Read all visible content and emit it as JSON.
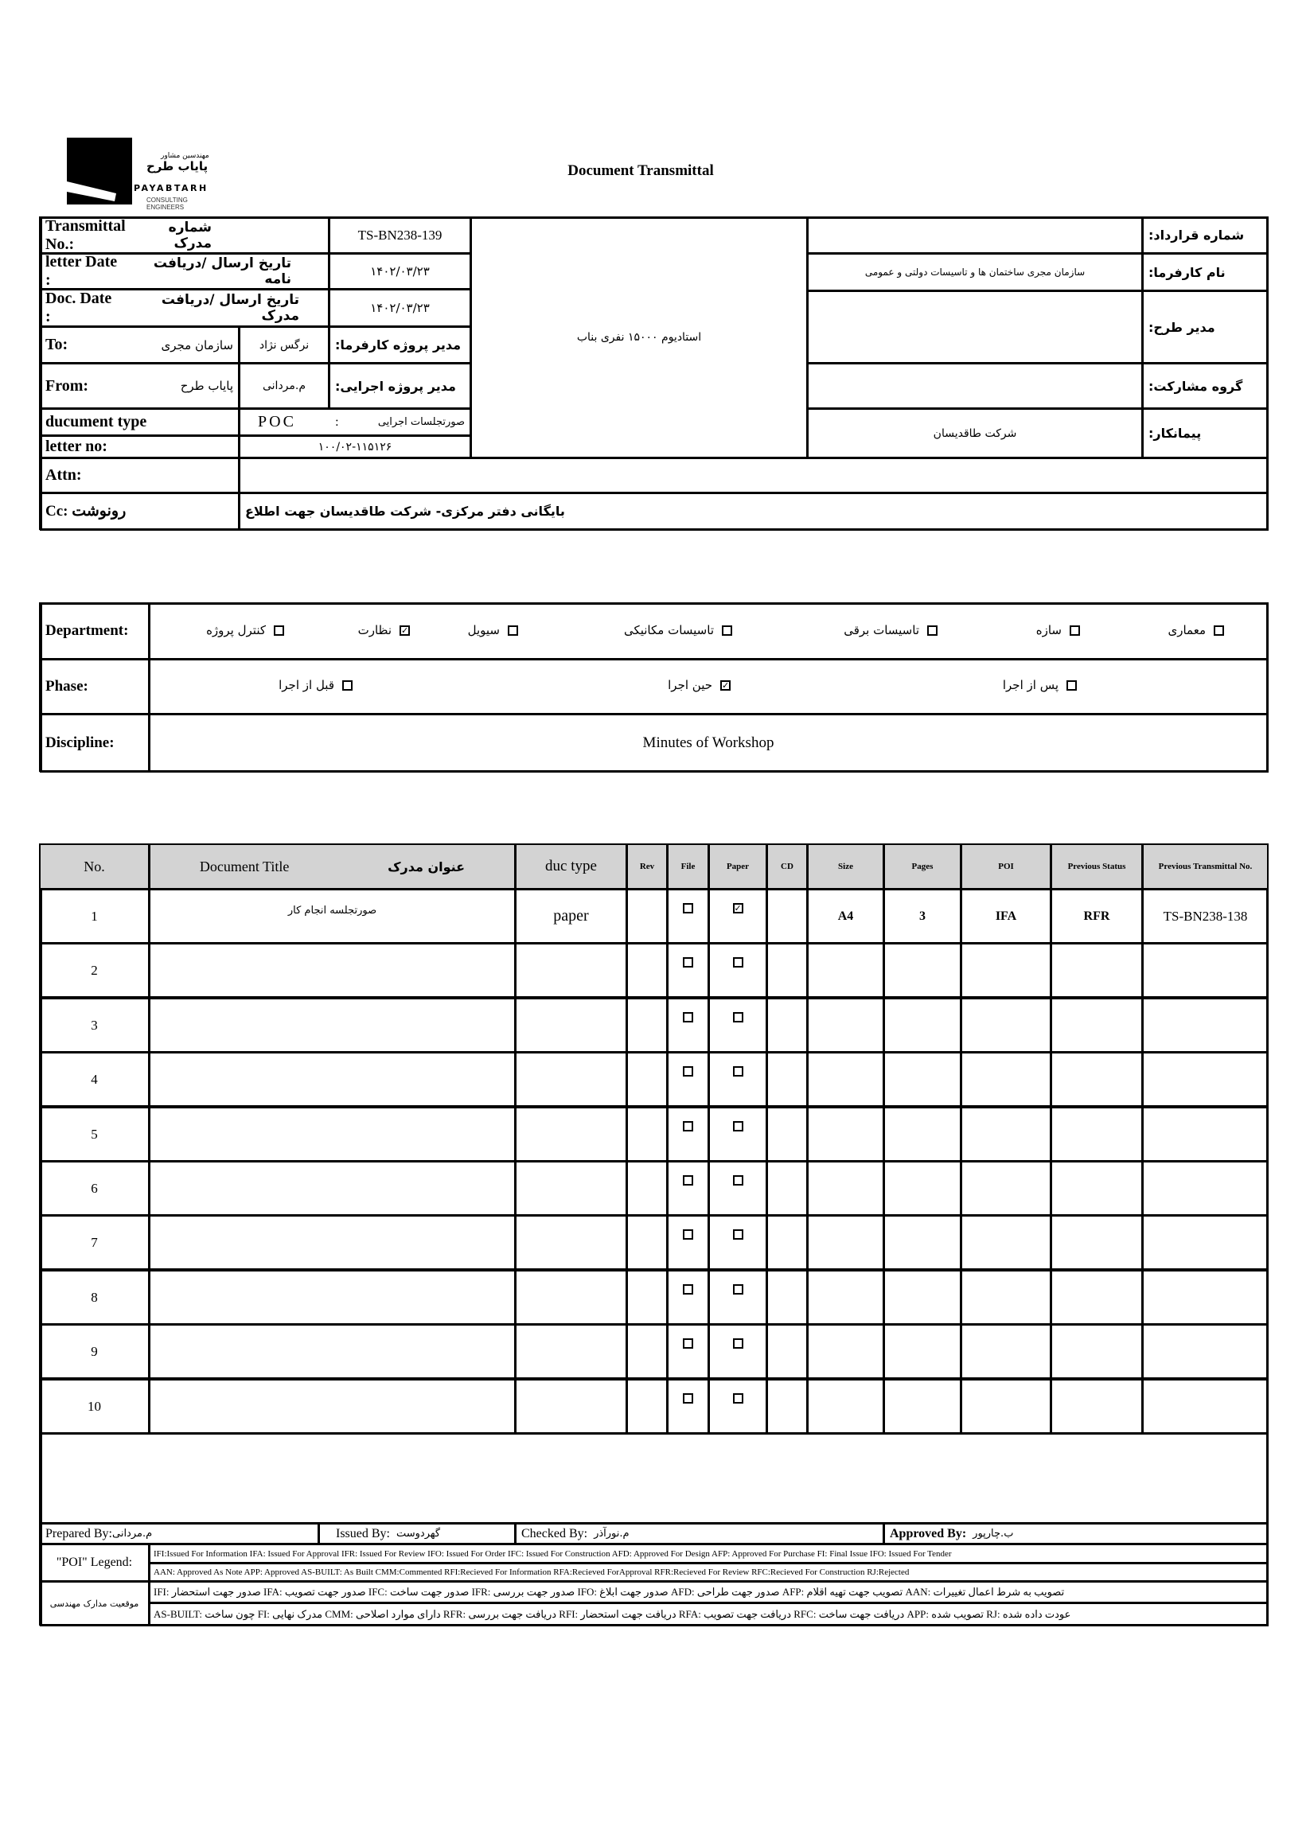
{
  "logo": {
    "company_fa_small": "مهندسین مشاور",
    "company_fa": "پایاب طرح",
    "company_en": "PAYABTARH",
    "tagline": "CONSULTING ENGINEERS"
  },
  "title": "Document Transmittal",
  "header": {
    "transmittal_label_en": "Transmittal No.:",
    "transmittal_label_fa": "شماره مدرک",
    "transmittal_no": "TS-BN238-139",
    "letter_date_label_en": "letter Date  :",
    "letter_date_label_fa": "تاریخ ارسال /دریافت نامه",
    "letter_date": "۱۴۰۲/۰۳/۲۳",
    "doc_date_label_en": "Doc. Date :",
    "doc_date_label_fa": "تاریخ ارسال /دریافت مدرک",
    "doc_date": "۱۴۰۲/۰۳/۲۳",
    "to_label": "To:",
    "to_value": "سازمان مجری",
    "client_pm_name": "نرگس نژاد",
    "client_pm_label": "مدیر پروژه کارفرما:",
    "from_label": "From:",
    "from_value": "پایاب طرح",
    "exec_pm_name": "م.مردانی",
    "exec_pm_label": "مدیر پروژه اجرایی:",
    "doc_type_label": "ducument type",
    "doc_type_code": "POC",
    "doc_type_sep": ":",
    "doc_type_value": "صورتجلسات اجرایی",
    "letter_no_label": "letter no:",
    "letter_no": "۱۰۰/۰۲-۱۱۵۱۲۶",
    "project_name": "استادیوم ۱۵۰۰۰ نفری بناب",
    "contract_no_label": "شماره قرارداد:",
    "contract_no": "",
    "employer_label": "نام کارفرما:",
    "employer": "سازمان مجری ساختمان ها و تاسیسات دولتی و عمومی",
    "plan_manager_label": "مدیر طرح:",
    "plan_manager": "",
    "partner_group_label": "گروه مشارکت:",
    "partner_group": "",
    "contractor_label": "پیمانکار:",
    "contractor": "شرکت طاقدیسان",
    "attn_label": "Attn:",
    "attn": "",
    "cc_label": "Cc: رونوشت",
    "cc": "بایگانی دفتر مرکزی- شرکت طاقدیسان جهت اطلاع"
  },
  "classification": {
    "department_label": "Department:",
    "departments": [
      {
        "label": "معماری",
        "checked": false
      },
      {
        "label": "سازه",
        "checked": false
      },
      {
        "label": "تاسیسات برقی",
        "checked": false
      },
      {
        "label": "تاسیسات مکانیکی",
        "checked": false
      },
      {
        "label": "سیویل",
        "checked": false
      },
      {
        "label": "نظارت",
        "checked": true
      },
      {
        "label": "کنترل پروژه",
        "checked": false
      }
    ],
    "phase_label": "Phase:",
    "phases": [
      {
        "label": "پس از اجرا",
        "checked": false
      },
      {
        "label": "حین اجرا",
        "checked": true
      },
      {
        "label": "قبل از اجرا",
        "checked": false
      }
    ],
    "discipline_label": "Discipline:",
    "discipline": "Minutes of Workshop"
  },
  "documents": {
    "columns": {
      "no": "No.",
      "title_en": "Document Title",
      "title_fa": "عنوان مدرک",
      "duc_type": "duc type",
      "rev": "Rev",
      "file": "File",
      "paper": "Paper",
      "cd": "CD",
      "size": "Size",
      "pages": "Pages",
      "poi": "POI",
      "prev_status": "Previous Status",
      "prev_transmittal": "Previous Transmittal No."
    },
    "rows": [
      {
        "no": "1",
        "title": "صورتجلسه انجام کار",
        "duc_type": "paper",
        "rev": "",
        "file": false,
        "paper": true,
        "cd": "",
        "size": "A4",
        "pages": "3",
        "poi": "IFA",
        "prev_status": "RFR",
        "prev_transmittal": "TS-BN238-138"
      },
      {
        "no": "2",
        "title": "",
        "duc_type": "",
        "rev": "",
        "file": false,
        "paper": false,
        "cd": "",
        "size": "",
        "pages": "",
        "poi": "",
        "prev_status": "",
        "prev_transmittal": ""
      },
      {
        "no": "3",
        "title": "",
        "duc_type": "",
        "rev": "",
        "file": false,
        "paper": false,
        "cd": "",
        "size": "",
        "pages": "",
        "poi": "",
        "prev_status": "",
        "prev_transmittal": ""
      },
      {
        "no": "4",
        "title": "",
        "duc_type": "",
        "rev": "",
        "file": false,
        "paper": false,
        "cd": "",
        "size": "",
        "pages": "",
        "poi": "",
        "prev_status": "",
        "prev_transmittal": ""
      },
      {
        "no": "5",
        "title": "",
        "duc_type": "",
        "rev": "",
        "file": false,
        "paper": false,
        "cd": "",
        "size": "",
        "pages": "",
        "poi": "",
        "prev_status": "",
        "prev_transmittal": ""
      },
      {
        "no": "6",
        "title": "",
        "duc_type": "",
        "rev": "",
        "file": false,
        "paper": false,
        "cd": "",
        "size": "",
        "pages": "",
        "poi": "",
        "prev_status": "",
        "prev_transmittal": ""
      },
      {
        "no": "7",
        "title": "",
        "duc_type": "",
        "rev": "",
        "file": false,
        "paper": false,
        "cd": "",
        "size": "",
        "pages": "",
        "poi": "",
        "prev_status": "",
        "prev_transmittal": ""
      },
      {
        "no": "8",
        "title": "",
        "duc_type": "",
        "rev": "",
        "file": false,
        "paper": false,
        "cd": "",
        "size": "",
        "pages": "",
        "poi": "",
        "prev_status": "",
        "prev_transmittal": ""
      },
      {
        "no": "9",
        "title": "",
        "duc_type": "",
        "rev": "",
        "file": false,
        "paper": false,
        "cd": "",
        "size": "",
        "pages": "",
        "poi": "",
        "prev_status": "",
        "prev_transmittal": ""
      },
      {
        "no": "10",
        "title": "",
        "duc_type": "",
        "rev": "",
        "file": false,
        "paper": false,
        "cd": "",
        "size": "",
        "pages": "",
        "poi": "",
        "prev_status": "",
        "prev_transmittal": ""
      }
    ]
  },
  "signatures": {
    "prepared_label": "Prepared By:",
    "prepared": "م.مردانی",
    "issued_label": "Issued By:",
    "issued": "گهردوست",
    "checked_label": "Checked By:",
    "checked": "م.نورآذر",
    "approved_label": "Approved By:",
    "approved": "ب.چارپور"
  },
  "legend": {
    "poi_label": "\"POI\" Legend:",
    "line1": "IFI:Issued For Information  IFA: Issued For Approval  IFR: Issued For Review   IFO: Issued For Order  IFC: Issued For Construction AFD: Approved For Design AFP: Approved For Purchase  FI: Final Issue  IFO: Issued For Tender",
    "line2": "AAN: Approved As Note  APP: Approved  AS-BUILT: As Built CMM:Commented  RFI:Recieved For Information  RFA:Recieved ForApproval  RFR:Recieved For Review  RFC:Recieved For Construction  RJ:Rejected",
    "status_label": "موقعیت مدارک مهندسی",
    "line3": "IFI: صدور جهت استحضار    IFA: صدور جهت تصویب    IFC: صدور جهت ساخت    IFR: صدور جهت بررسی    IFO: صدور جهت ابلاغ    AFD: صدور جهت طراحی    AFP: تصویب جهت تهیه اقلام    AAN: تصویب به شرط اعمال تغییرات",
    "line4": "AS-BUILT: چون ساخت    FI: مدرک نهایی    CMM: دارای موارد اصلاحی    RFR: دریافت جهت بررسی    RFI: دریافت جهت استحضار    RFA: دریافت جهت تصویب    RFC: دریافت جهت ساخت    APP: تصویب شده    RJ: عودت داده شده"
  }
}
